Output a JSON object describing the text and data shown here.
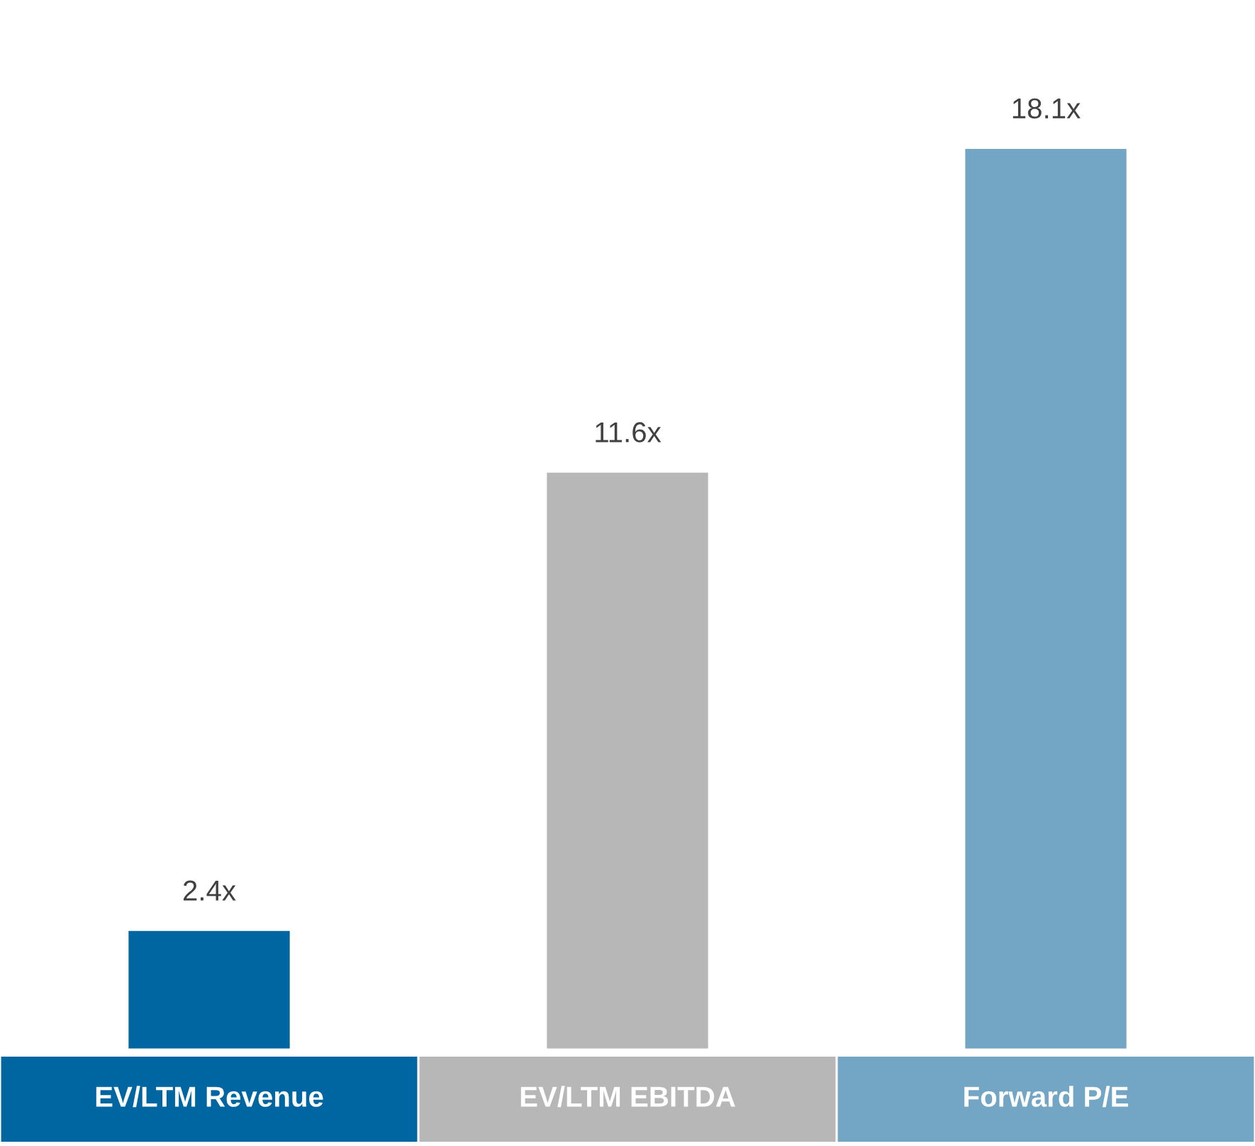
{
  "chart_data": {
    "type": "bar",
    "categories": [
      "EV/LTM Revenue",
      "EV/LTM EBITDA",
      "Forward P/E"
    ],
    "values": [
      2.4,
      11.6,
      18.1
    ],
    "colors": [
      "#0066a1",
      "#b7b7b7",
      "#73a5c5"
    ],
    "value_labels": [
      "2.4x",
      "11.6x",
      "18.1x"
    ]
  }
}
